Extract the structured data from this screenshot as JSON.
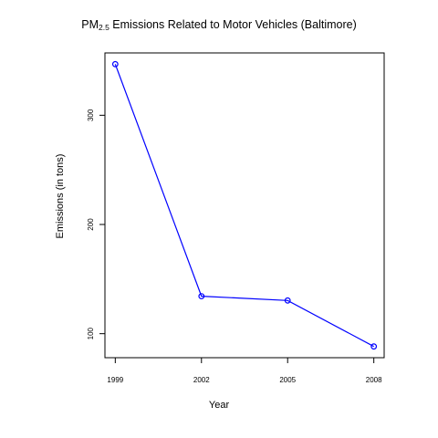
{
  "chart_data": {
    "type": "line",
    "title_main": "PM",
    "title_sub": "2.5",
    "title_rest": " Emissions Related to Motor Vehicles (Baltimore)",
    "xlabel": "Year",
    "ylabel": "Emissions (in tons)",
    "x": [
      1999,
      2002,
      2005,
      2008
    ],
    "x_ticks": [
      "1999",
      "2002",
      "2005",
      "2008"
    ],
    "y_ticks": [
      100,
      200,
      300
    ],
    "y_tick_labels": [
      "100",
      "200",
      "300"
    ],
    "series": [
      {
        "values": [
          346.8,
          134.3,
          130.4,
          88.3
        ],
        "color": "#0000ff",
        "marker": "open-circle"
      }
    ],
    "xlim": [
      1998.64,
      2008.36
    ],
    "ylim": [
      78.0,
      357.1
    ],
    "grid": false,
    "legend": "none"
  }
}
